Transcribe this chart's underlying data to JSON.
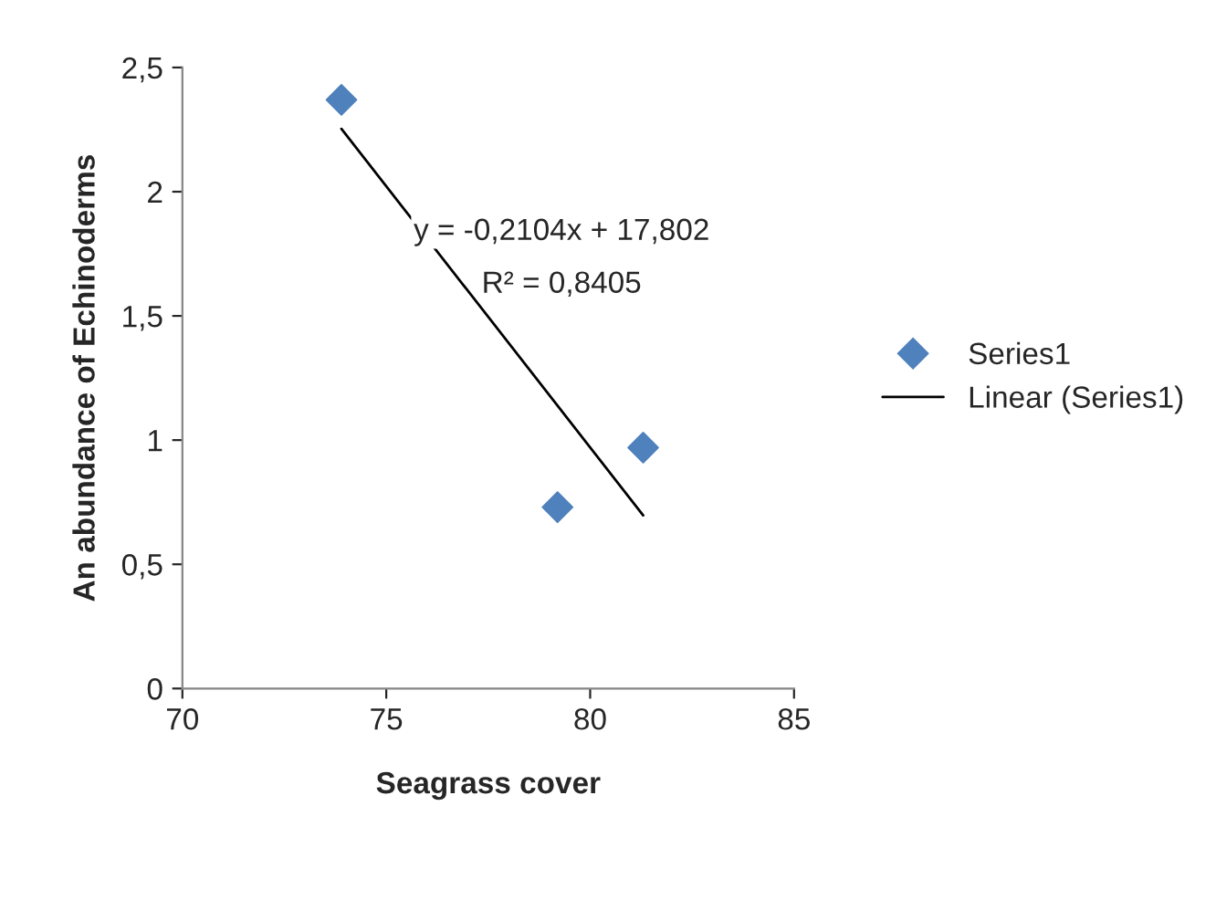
{
  "chart_data": {
    "type": "scatter",
    "xlabel": "Seagrass cover",
    "ylabel": "An abundance of Echinoderms",
    "series": [
      {
        "name": "Series1",
        "color": "#4f81bd",
        "marker": "diamond",
        "x": [
          73.9,
          79.2,
          81.3
        ],
        "values": [
          2.37,
          0.73,
          0.97
        ]
      },
      {
        "name": "Linear (Series1)",
        "type": "line",
        "color": "#000000",
        "line_style": "solid",
        "x": [
          73.9,
          81.3
        ],
        "values": [
          2.253,
          0.697
        ]
      }
    ],
    "xlim": [
      70,
      85
    ],
    "xticks": [
      70,
      75,
      80,
      85
    ],
    "ylim": [
      0,
      2.5
    ],
    "yticks": [
      0,
      {
        "value": 0.5,
        "label": "0,5"
      },
      1,
      {
        "value": 1.5,
        "label": "1,5"
      },
      2,
      {
        "value": 2.5,
        "label": "2,5"
      }
    ],
    "annotations": [
      "y = -0,2104x + 17,802",
      "R² = 0,8405"
    ],
    "grid": false,
    "legend": "right"
  }
}
